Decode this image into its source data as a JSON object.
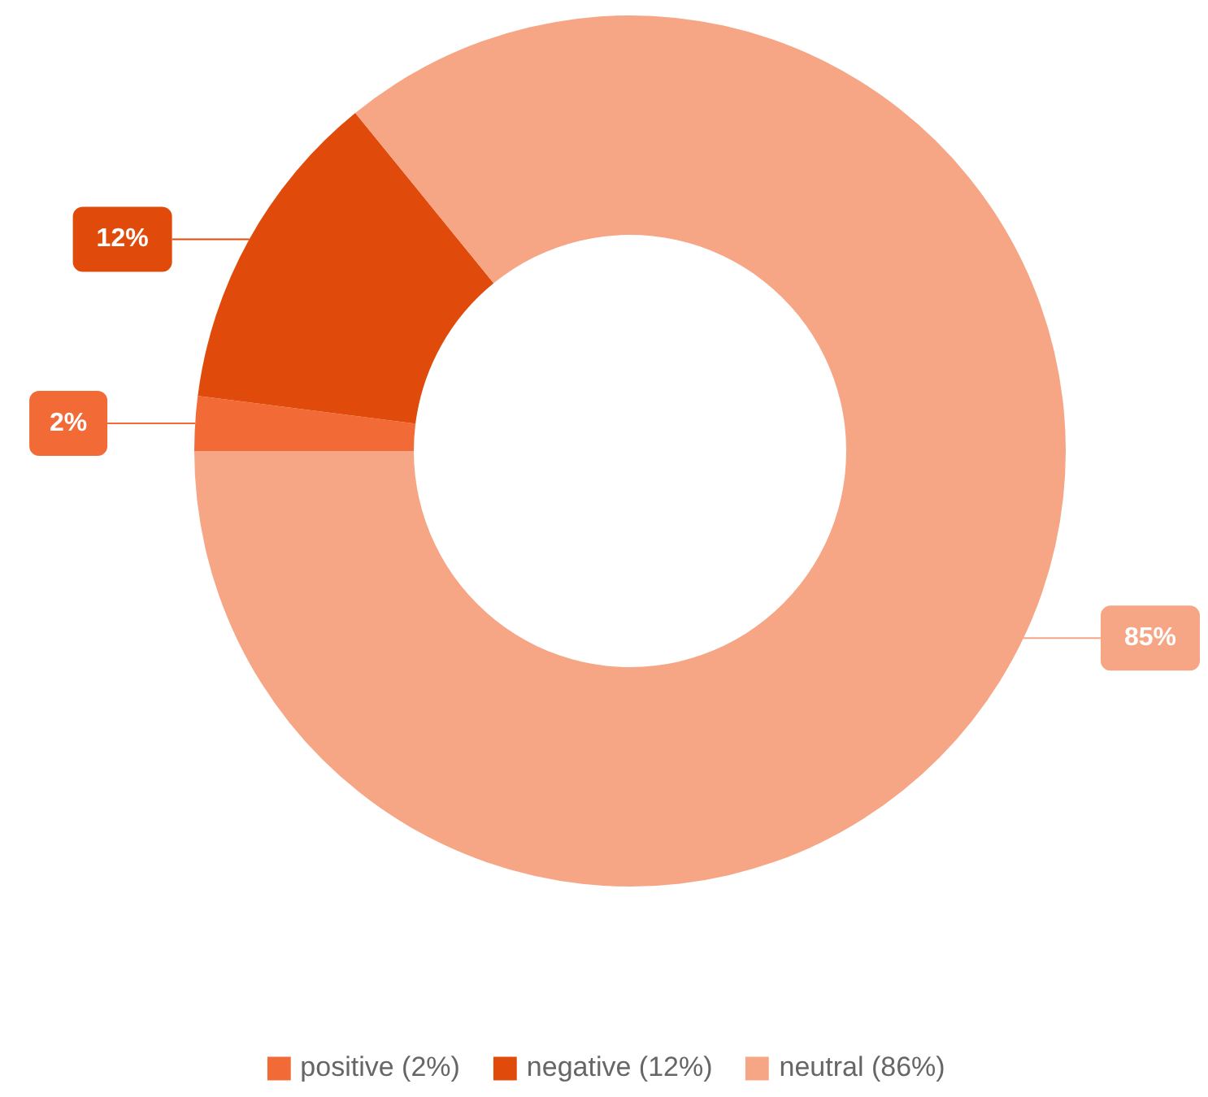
{
  "chart_data": {
    "type": "donut",
    "categories": [
      "positive (2%)",
      "negative (12%)",
      "neutral (86%)"
    ],
    "values": [
      2,
      12,
      85
    ],
    "colors": [
      "#f26a35",
      "#e04b0b",
      "#f6a585"
    ],
    "value_labels": [
      "2%",
      "12%",
      "85%"
    ],
    "legend": "bottom"
  }
}
